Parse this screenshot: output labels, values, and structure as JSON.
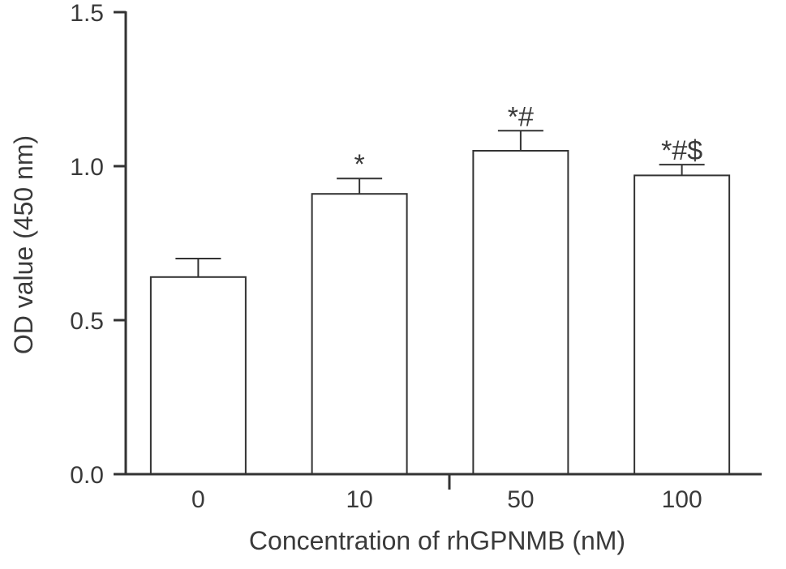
{
  "chart_data": {
    "type": "bar",
    "xlabel": "Concentration of rhGPNMB (nM)",
    "ylabel": "OD value (450 nm)",
    "ylim": [
      0,
      1.5
    ],
    "y_ticks": [
      "0.0",
      "0.5",
      "1.0",
      "1.5"
    ],
    "categories": [
      "0",
      "10",
      "50",
      "100"
    ],
    "values": [
      0.64,
      0.91,
      1.05,
      0.97
    ],
    "errors": [
      0.06,
      0.05,
      0.065,
      0.035
    ],
    "annotations": [
      "",
      "*",
      "*#",
      "*#$"
    ],
    "bar_fill": "#ffffff",
    "stroke_color": "#333333",
    "grid": false
  }
}
